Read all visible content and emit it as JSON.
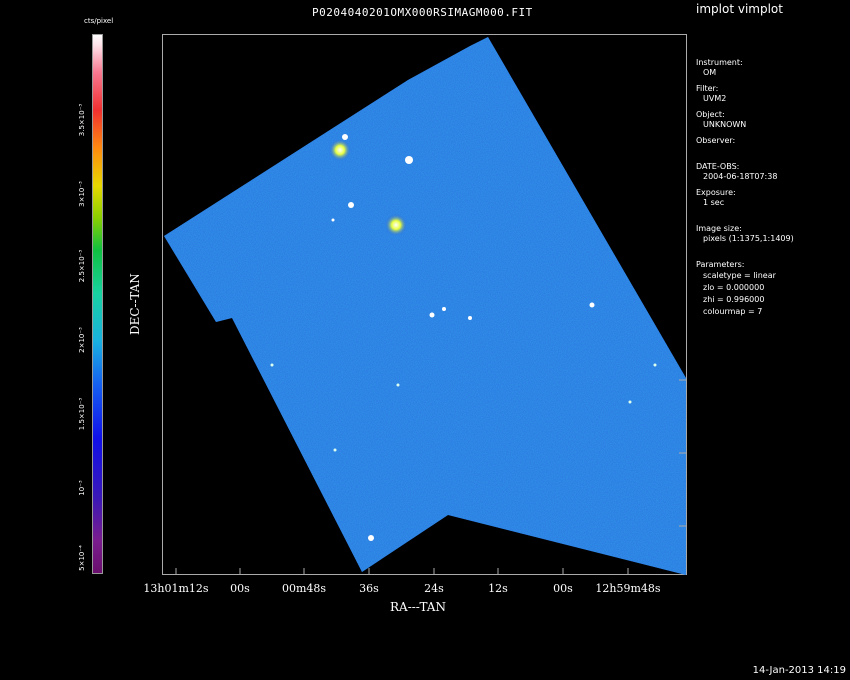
{
  "window": {
    "title": "P0204040201OMX000RSIMAGM000.FIT",
    "app_title": "implot vimplot",
    "timestamp": "14-Jan-2013 14:19"
  },
  "colorbar": {
    "unit": "cts/pixel",
    "ticks": [
      "5×10⁻⁴",
      "10⁻³",
      "1.5×10⁻³",
      "2×10⁻³",
      "2.5×10⁻³",
      "3×10⁻³",
      "3.5×10⁻³"
    ]
  },
  "axes": {
    "ylabel": "DEC--TAN",
    "xlabel": "RA---TAN",
    "xticks": [
      "13h01m12s",
      "00s",
      "00m48s",
      "36s",
      "24s",
      "12s",
      "00s",
      "12h59m48s"
    ]
  },
  "info": {
    "instrument_label": "Instrument:",
    "instrument": "OM",
    "filter_label": "Filter:",
    "filter": "UVM2",
    "object_label": "Object:",
    "object": "UNKNOWN",
    "observer_label": "Observer:",
    "date_label": "DATE-OBS:",
    "date": "2004-06-18T07:38",
    "exposure_label": "Exposure:",
    "exposure": "1 sec",
    "size_label": "Image size:",
    "size": "pixels (1:1375,1:1409)",
    "params_label": "Parameters:",
    "scaletype": "scaletype = linear",
    "zlo": "zlo = 0.000000",
    "zhi": "zhi = 0.996000",
    "colourmap": "colourmap =   7"
  },
  "colors": {
    "field": "#1a55e0",
    "background": "#000000"
  }
}
